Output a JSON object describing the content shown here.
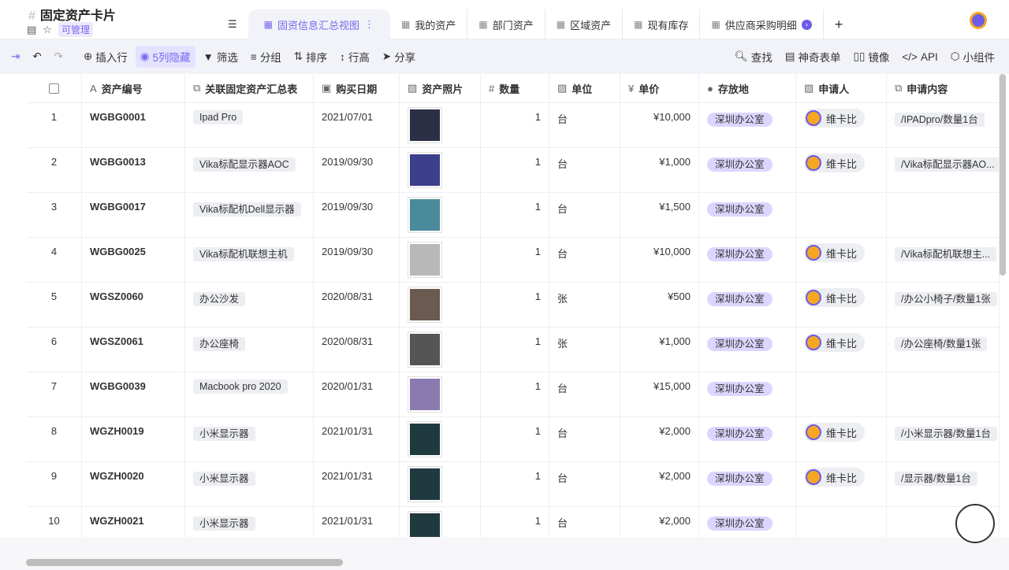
{
  "header": {
    "title": "固定资产卡片",
    "permission": "可管理"
  },
  "tabs": [
    {
      "label": "固资信息汇总视图",
      "active": true
    },
    {
      "label": "我的资产"
    },
    {
      "label": "部门资产"
    },
    {
      "label": "区域资产"
    },
    {
      "label": "现有库存"
    },
    {
      "label": "供应商采购明细"
    }
  ],
  "toolbar": {
    "insert": "插入行",
    "hidden": "5列隐藏",
    "filter": "筛选",
    "group": "分组",
    "sort": "排序",
    "row_height": "行高",
    "share": "分享",
    "find": "查找",
    "form": "神奇表单",
    "mirror": "镜像",
    "api": "API",
    "widget": "小组件"
  },
  "columns": [
    "资产编号",
    "关联固定资产汇总表",
    "购买日期",
    "资产照片",
    "数量",
    "单位",
    "单价",
    "存放地",
    "申请人",
    "申请内容"
  ],
  "rows": [
    {
      "n": "1",
      "id": "WGBG0001",
      "link": "Ipad Pro",
      "date": "2021/07/01",
      "qty": "1",
      "unit": "台",
      "price": "¥10,000",
      "loc": "深圳办公室",
      "person": "维卡比",
      "content": "/IPADpro/数量1台",
      "img": "#2a2f45"
    },
    {
      "n": "2",
      "id": "WGBG0013",
      "link": "Vika标配显示器AOC",
      "date": "2019/09/30",
      "qty": "1",
      "unit": "台",
      "price": "¥1,000",
      "loc": "深圳办公室",
      "person": "维卡比",
      "content": "/Vika标配显示器AO...",
      "img": "#3b3f8c"
    },
    {
      "n": "3",
      "id": "WGBG0017",
      "link": "Vika标配机Dell显示器",
      "date": "2019/09/30",
      "qty": "1",
      "unit": "台",
      "price": "¥1,500",
      "loc": "深圳办公室",
      "person": "",
      "content": "",
      "img": "#4a8a9a"
    },
    {
      "n": "4",
      "id": "WGBG0025",
      "link": "Vika标配机联想主机",
      "date": "2019/09/30",
      "qty": "1",
      "unit": "台",
      "price": "¥10,000",
      "loc": "深圳办公室",
      "person": "维卡比",
      "content": "/Vika标配机联想主...",
      "img": "#b8b8b8"
    },
    {
      "n": "5",
      "id": "WGSZ0060",
      "link": "办公沙发",
      "date": "2020/08/31",
      "qty": "1",
      "unit": "张",
      "price": "¥500",
      "loc": "深圳办公室",
      "person": "维卡比",
      "content": "/办公小椅子/数量1张",
      "img": "#6a5a50"
    },
    {
      "n": "6",
      "id": "WGSZ0061",
      "link": "办公座椅",
      "date": "2020/08/31",
      "qty": "1",
      "unit": "张",
      "price": "¥1,000",
      "loc": "深圳办公室",
      "person": "维卡比",
      "content": "/办公座椅/数量1张",
      "img": "#555"
    },
    {
      "n": "7",
      "id": "WGBG0039",
      "link": "Macbook pro 2020",
      "date": "2020/01/31",
      "qty": "1",
      "unit": "台",
      "price": "¥15,000",
      "loc": "深圳办公室",
      "person": "",
      "content": "",
      "img": "#8a7ab0"
    },
    {
      "n": "8",
      "id": "WGZH0019",
      "link": "小米显示器",
      "date": "2021/01/31",
      "qty": "1",
      "unit": "台",
      "price": "¥2,000",
      "loc": "深圳办公室",
      "person": "维卡比",
      "content": "/小米显示器/数量1台",
      "img": "#1f3a3e"
    },
    {
      "n": "9",
      "id": "WGZH0020",
      "link": "小米显示器",
      "date": "2021/01/31",
      "qty": "1",
      "unit": "台",
      "price": "¥2,000",
      "loc": "深圳办公室",
      "person": "维卡比",
      "content": "/显示器/数量1台",
      "img": "#1f3a3e"
    },
    {
      "n": "10",
      "id": "WGZH0021",
      "link": "小米显示器",
      "date": "2021/01/31",
      "qty": "1",
      "unit": "台",
      "price": "¥2,000",
      "loc": "深圳办公室",
      "person": "",
      "content": "",
      "img": "#1f3a3e"
    }
  ]
}
